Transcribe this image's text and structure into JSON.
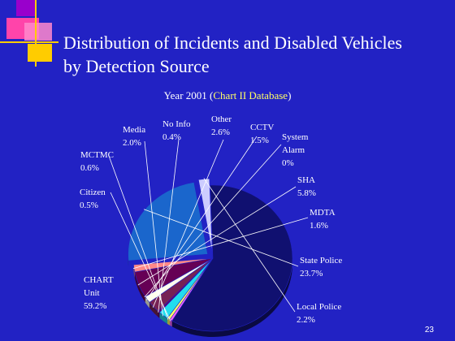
{
  "slide": {
    "title_line1": "Distribution of Incidents and Disabled Vehicles",
    "title_line2": "by Detection Source",
    "subtitle_prefix": "Year 2001 (",
    "subtitle_source": "Chart II Database",
    "subtitle_suffix": ")",
    "page_number": "23"
  },
  "colors": {
    "background": "#2222c4",
    "label_text": "#ffffff",
    "source_highlight": "#ffff66"
  },
  "chart_data": {
    "type": "pie",
    "title": "",
    "unit": "%",
    "slices": [
      {
        "name": "CHART Unit",
        "value": 59.2,
        "name_lines": [
          "CHART",
          "Unit"
        ],
        "pct": "59.2%",
        "color": "#101070"
      },
      {
        "name": "Citizen",
        "value": 0.5,
        "name_lines": [
          "Citizen"
        ],
        "pct": "0.5%",
        "color": "#ff66ff"
      },
      {
        "name": "MCTMC",
        "value": 0.6,
        "name_lines": [
          "MCTMC"
        ],
        "pct": "0.6%",
        "color": "#ffff66"
      },
      {
        "name": "Media",
        "value": 2.0,
        "name_lines": [
          "Media"
        ],
        "pct": "2.0%",
        "color": "#22ddee"
      },
      {
        "name": "No Info",
        "value": 0.4,
        "name_lines": [
          "No Info"
        ],
        "pct": "0.4%",
        "color": "#660066"
      },
      {
        "name": "Other",
        "value": 2.6,
        "name_lines": [
          "Other"
        ],
        "pct": "2.6%",
        "color": "#772255"
      },
      {
        "name": "CCTV",
        "value": 1.5,
        "name_lines": [
          "CCTV"
        ],
        "pct": "1.5%",
        "color": "#ffffee"
      },
      {
        "name": "System Alarm",
        "value": 0,
        "name_lines": [
          "System",
          "Alarm"
        ],
        "pct": "0%",
        "color": "#bbbbbb"
      },
      {
        "name": "SHA",
        "value": 5.8,
        "name_lines": [
          "SHA"
        ],
        "pct": "5.8%",
        "color": "#660055"
      },
      {
        "name": "MDTA",
        "value": 1.6,
        "name_lines": [
          "MDTA"
        ],
        "pct": "1.6%",
        "color": "#ff8888"
      },
      {
        "name": "State Police",
        "value": 23.7,
        "name_lines": [
          "State Police"
        ],
        "pct": "23.7%",
        "color": "#1a66cc"
      },
      {
        "name": "Local Police",
        "value": 2.2,
        "name_lines": [
          "Local Police"
        ],
        "pct": "2.2%",
        "color": "#ccccff"
      }
    ]
  }
}
